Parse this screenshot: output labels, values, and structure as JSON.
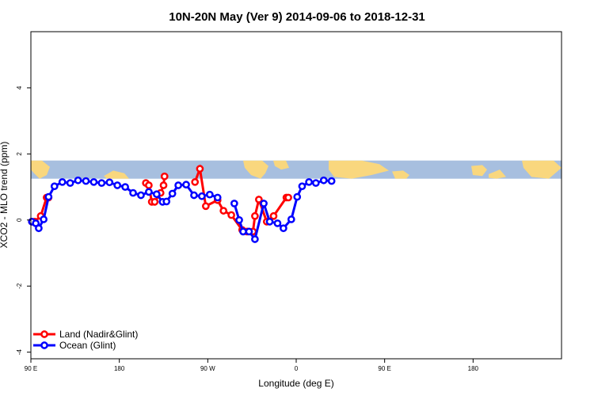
{
  "chart_data": {
    "type": "line",
    "title": "10N-20N May (Ver 9)   2014-09-06 to 2018-12-31",
    "xlabel": "Longitude (deg E)",
    "ylabel": "XCO2 - MLO trend (ppm)",
    "xlim": [
      90,
      450
    ],
    "ylim": [
      -4.2,
      5.7
    ],
    "x_ticks": [
      {
        "x": 90,
        "label": "90 E"
      },
      {
        "x": 180,
        "label": "180"
      },
      {
        "x": 270,
        "label": "90 W"
      },
      {
        "x": 360,
        "label": "0"
      },
      {
        "x": 450,
        "label": "90 E"
      },
      {
        "x": 540,
        "label": "180"
      }
    ],
    "y_ticks": [
      {
        "y": -4,
        "label": "-4"
      },
      {
        "y": -2,
        "label": "-2"
      },
      {
        "y": 0,
        "label": "0"
      },
      {
        "y": 2,
        "label": "2"
      },
      {
        "y": 4,
        "label": "4"
      }
    ],
    "map_strip": {
      "y_range": [
        1.25,
        1.8
      ],
      "ocean_color": "#a7bfdf",
      "land_color": "#f9d77e"
    },
    "legend": {
      "position": "bottom-left"
    },
    "series": [
      {
        "name": "Land (Nadir&Glint)",
        "color": "#ff0000",
        "segments": [
          [
            [
              91,
              -0.05
            ],
            [
              94,
              -0.05
            ],
            [
              100,
              0.12
            ],
            [
              106,
              0.68
            ],
            [
              108,
              0.68
            ]
          ],
          [
            [
              207,
              1.12
            ],
            [
              210,
              1.05
            ],
            [
              213,
              0.55
            ],
            [
              216,
              0.55
            ],
            [
              222,
              0.82
            ],
            [
              225,
              1.05
            ],
            [
              226,
              1.32
            ]
          ],
          [
            [
              257,
              1.15
            ],
            [
              262,
              1.55
            ],
            [
              268,
              0.42
            ],
            [
              280,
              0.6
            ],
            [
              286,
              0.28
            ],
            [
              294,
              0.15
            ],
            [
              305,
              -0.3
            ],
            [
              310,
              -0.35
            ],
            [
              316,
              -0.35
            ],
            [
              318,
              0.12
            ],
            [
              322,
              0.62
            ],
            [
              330,
              -0.05
            ],
            [
              337,
              0.12
            ],
            [
              350,
              0.68
            ],
            [
              352,
              0.68
            ]
          ]
        ]
      },
      {
        "name": "Ocean (Glint)",
        "color": "#0000ff",
        "segments": [
          [
            [
              91,
              -0.05
            ],
            [
              95,
              -0.1
            ],
            [
              98,
              -0.25
            ],
            [
              103,
              0.02
            ],
            [
              108,
              0.7
            ],
            [
              114,
              1.02
            ],
            [
              122,
              1.15
            ],
            [
              130,
              1.12
            ],
            [
              138,
              1.2
            ],
            [
              146,
              1.18
            ],
            [
              154,
              1.15
            ],
            [
              162,
              1.12
            ],
            [
              170,
              1.14
            ],
            [
              178,
              1.05
            ],
            [
              186,
              1.0
            ],
            [
              194,
              0.82
            ],
            [
              202,
              0.75
            ],
            [
              210,
              0.85
            ],
            [
              218,
              0.78
            ],
            [
              224,
              0.55
            ],
            [
              228,
              0.56
            ],
            [
              234,
              0.8
            ],
            [
              240,
              1.05
            ],
            [
              248,
              1.07
            ],
            [
              256,
              0.75
            ],
            [
              264,
              0.72
            ],
            [
              272,
              0.77
            ],
            [
              280,
              0.68
            ]
          ],
          [
            [
              297,
              0.5
            ],
            [
              302,
              0.0
            ],
            [
              306,
              -0.35
            ],
            [
              312,
              -0.35
            ],
            [
              318,
              -0.58
            ],
            [
              327,
              0.5
            ],
            [
              333,
              -0.05
            ],
            [
              341,
              -0.1
            ],
            [
              347,
              -0.25
            ],
            [
              355,
              0.02
            ],
            [
              361,
              0.7
            ],
            [
              366,
              1.02
            ],
            [
              373,
              1.15
            ],
            [
              380,
              1.12
            ],
            [
              388,
              1.2
            ],
            [
              396,
              1.18
            ]
          ]
        ]
      }
    ]
  }
}
